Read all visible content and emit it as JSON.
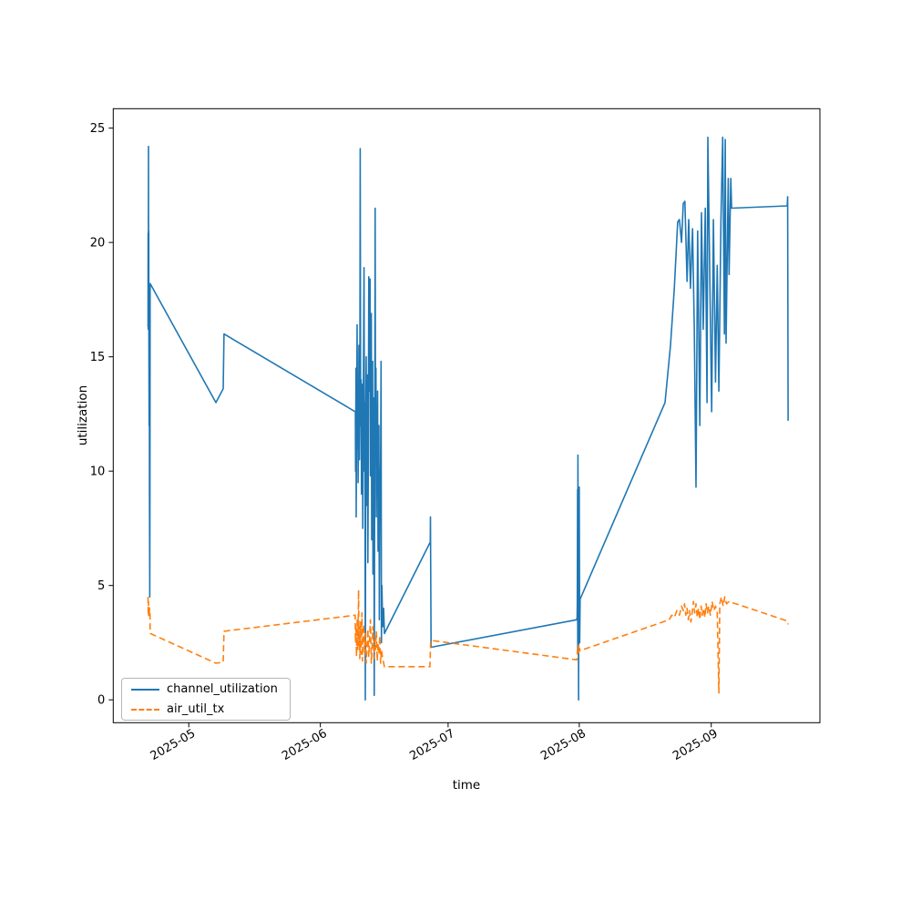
{
  "chart_data": {
    "type": "line",
    "title": "",
    "xlabel": "time",
    "ylabel": "utilization",
    "grid": false,
    "legend_position": "lower left",
    "x_axis": {
      "unit": "days since 2025-04-13",
      "min": 0,
      "max": 166.5,
      "ticks": [
        {
          "day": 17.8,
          "label": "2025-05"
        },
        {
          "day": 48.8,
          "label": "2025-06"
        },
        {
          "day": 78.9,
          "label": "2025-07"
        },
        {
          "day": 109.8,
          "label": "2025-08"
        },
        {
          "day": 140.9,
          "label": "2025-09"
        }
      ]
    },
    "y_axis": {
      "min": -1.0,
      "max": 25.85,
      "ticks": [
        0,
        5,
        10,
        15,
        20,
        25
      ]
    },
    "series": [
      {
        "name": "channel_utilization",
        "color": "#1f77b4",
        "style": "solid",
        "points": [
          [
            8.2,
            16.3
          ],
          [
            8.23,
            20.4
          ],
          [
            8.27,
            16.2
          ],
          [
            8.3,
            24.2
          ],
          [
            8.33,
            17.5
          ],
          [
            8.37,
            20.5
          ],
          [
            8.4,
            16.4
          ],
          [
            8.45,
            12.0
          ],
          [
            8.5,
            16.0
          ],
          [
            8.55,
            8.8
          ],
          [
            8.6,
            4.5
          ],
          [
            8.65,
            9.2
          ],
          [
            8.7,
            18.2
          ],
          [
            24.2,
            13.0
          ],
          [
            25.9,
            13.6
          ],
          [
            26.1,
            16.0
          ],
          [
            57.0,
            12.6
          ],
          [
            57.05,
            12.6
          ],
          [
            57.1,
            10.0
          ],
          [
            57.2,
            14.5
          ],
          [
            57.25,
            8.0
          ],
          [
            57.35,
            12.8
          ],
          [
            57.45,
            16.4
          ],
          [
            57.55,
            11.0
          ],
          [
            57.65,
            13.5
          ],
          [
            57.7,
            9.5
          ],
          [
            57.8,
            12.0
          ],
          [
            57.9,
            15.5
          ],
          [
            58.0,
            10.5
          ],
          [
            58.1,
            13.0
          ],
          [
            58.2,
            24.1
          ],
          [
            58.3,
            12.0
          ],
          [
            58.4,
            14.0
          ],
          [
            58.5,
            9.0
          ],
          [
            58.6,
            11.5
          ],
          [
            58.7,
            13.8
          ],
          [
            58.8,
            7.5
          ],
          [
            58.9,
            12.5
          ],
          [
            59.0,
            16.0
          ],
          [
            59.1,
            18.9
          ],
          [
            59.2,
            10.0
          ],
          [
            59.3,
            13.0
          ],
          [
            59.4,
            0.0
          ],
          [
            59.5,
            12.0
          ],
          [
            59.6,
            15.0
          ],
          [
            59.7,
            8.5
          ],
          [
            59.8,
            11.0
          ],
          [
            59.9,
            14.2
          ],
          [
            60.0,
            6.0
          ],
          [
            60.1,
            10.5
          ],
          [
            60.2,
            18.5
          ],
          [
            60.35,
            13.5
          ],
          [
            60.5,
            18.4
          ],
          [
            60.6,
            9.8
          ],
          [
            60.7,
            12.2
          ],
          [
            60.8,
            16.9
          ],
          [
            60.9,
            7.0
          ],
          [
            61.0,
            11.8
          ],
          [
            61.1,
            14.8
          ],
          [
            61.2,
            5.5
          ],
          [
            61.3,
            10.2
          ],
          [
            61.4,
            13.2
          ],
          [
            61.5,
            0.2
          ],
          [
            61.6,
            9.5
          ],
          [
            61.7,
            21.5
          ],
          [
            61.8,
            11.5
          ],
          [
            61.9,
            14.5
          ],
          [
            62.0,
            8.0
          ],
          [
            62.1,
            12.8
          ],
          [
            62.2,
            10.0
          ],
          [
            62.3,
            13.5
          ],
          [
            62.4,
            6.5
          ],
          [
            62.5,
            9.0
          ],
          [
            62.6,
            12.0
          ],
          [
            62.7,
            3.5
          ],
          [
            62.8,
            7.8
          ],
          [
            63.0,
            10.5
          ],
          [
            63.1,
            14.8
          ],
          [
            63.2,
            2.5
          ],
          [
            63.3,
            5.0
          ],
          [
            63.5,
            3.2
          ],
          [
            63.7,
            4.0
          ],
          [
            63.9,
            2.9
          ],
          [
            74.7,
            6.9
          ],
          [
            74.75,
            8.0
          ],
          [
            74.9,
            2.3
          ],
          [
            109.2,
            3.5
          ],
          [
            109.3,
            3.6
          ],
          [
            109.35,
            4.2
          ],
          [
            109.4,
            9.2
          ],
          [
            109.45,
            2.0
          ],
          [
            109.5,
            10.7
          ],
          [
            109.55,
            4.0
          ],
          [
            109.6,
            9.0
          ],
          [
            109.65,
            0.0
          ],
          [
            109.7,
            6.0
          ],
          [
            109.8,
            9.3
          ],
          [
            109.9,
            2.5
          ],
          [
            110.0,
            4.4
          ],
          [
            130.0,
            13.0
          ],
          [
            131.3,
            15.5
          ],
          [
            132.2,
            18.0
          ],
          [
            133.0,
            20.9
          ],
          [
            133.4,
            21.0
          ],
          [
            133.9,
            20.0
          ],
          [
            134.3,
            21.7
          ],
          [
            134.7,
            21.8
          ],
          [
            135.2,
            18.3
          ],
          [
            135.6,
            21.0
          ],
          [
            136.0,
            18.0
          ],
          [
            136.5,
            20.6
          ],
          [
            136.9,
            16.3
          ],
          [
            137.3,
            9.3
          ],
          [
            137.7,
            20.5
          ],
          [
            138.2,
            12.0
          ],
          [
            138.6,
            21.3
          ],
          [
            139.0,
            16.2
          ],
          [
            139.5,
            21.5
          ],
          [
            139.9,
            13.0
          ],
          [
            140.1,
            24.6
          ],
          [
            140.6,
            18.0
          ],
          [
            141.0,
            12.6
          ],
          [
            141.4,
            21.0
          ],
          [
            141.9,
            13.9
          ],
          [
            142.3,
            19.0
          ],
          [
            142.7,
            13.5
          ],
          [
            143.2,
            21.0
          ],
          [
            143.6,
            24.6
          ],
          [
            144.0,
            16.0
          ],
          [
            144.2,
            24.5
          ],
          [
            144.4,
            15.6
          ],
          [
            144.9,
            22.8
          ],
          [
            145.1,
            18.6
          ],
          [
            145.5,
            22.8
          ],
          [
            145.7,
            21.5
          ],
          [
            158.8,
            21.6
          ],
          [
            158.9,
            22.0
          ],
          [
            159.0,
            12.2
          ]
        ]
      },
      {
        "name": "air_util_tx",
        "color": "#ff7f0e",
        "style": "dashed",
        "points": [
          [
            8.2,
            4.5
          ],
          [
            8.25,
            3.7
          ],
          [
            8.3,
            4.3
          ],
          [
            8.35,
            3.6
          ],
          [
            8.4,
            4.1
          ],
          [
            8.5,
            3.7
          ],
          [
            8.55,
            4.0
          ],
          [
            8.65,
            3.9
          ],
          [
            8.7,
            3.0
          ],
          [
            8.75,
            2.9
          ],
          [
            24.2,
            1.6
          ],
          [
            25.9,
            1.65
          ],
          [
            26.1,
            3.0
          ],
          [
            57.0,
            3.7
          ],
          [
            57.1,
            2.5
          ],
          [
            57.2,
            3.3
          ],
          [
            57.3,
            1.9
          ],
          [
            57.4,
            2.8
          ],
          [
            57.5,
            3.6
          ],
          [
            57.6,
            2.2
          ],
          [
            57.7,
            3.0
          ],
          [
            57.8,
            4.8
          ],
          [
            57.9,
            2.4
          ],
          [
            58.0,
            3.2
          ],
          [
            58.1,
            1.8
          ],
          [
            58.2,
            2.6
          ],
          [
            58.3,
            3.4
          ],
          [
            58.4,
            2.0
          ],
          [
            58.5,
            2.9
          ],
          [
            58.6,
            3.8
          ],
          [
            58.7,
            1.7
          ],
          [
            58.8,
            2.5
          ],
          [
            59.0,
            3.3
          ],
          [
            59.2,
            2.1
          ],
          [
            59.4,
            2.9
          ],
          [
            59.6,
            1.6
          ],
          [
            59.8,
            2.3
          ],
          [
            60.0,
            3.1
          ],
          [
            60.2,
            1.9
          ],
          [
            60.4,
            2.7
          ],
          [
            60.6,
            3.5
          ],
          [
            60.8,
            1.6
          ],
          [
            61.0,
            2.4
          ],
          [
            61.2,
            3.2
          ],
          [
            61.4,
            1.8
          ],
          [
            61.6,
            2.6
          ],
          [
            61.8,
            2.2
          ],
          [
            62.0,
            3.0
          ],
          [
            62.2,
            1.7
          ],
          [
            62.4,
            2.5
          ],
          [
            62.6,
            2.0
          ],
          [
            62.8,
            2.8
          ],
          [
            63.0,
            1.6
          ],
          [
            63.2,
            2.2
          ],
          [
            63.5,
            1.8
          ],
          [
            63.9,
            1.45
          ],
          [
            74.6,
            1.45
          ],
          [
            74.8,
            2.6
          ],
          [
            109.2,
            1.75
          ],
          [
            109.3,
            1.8
          ],
          [
            109.4,
            2.3
          ],
          [
            109.5,
            2.0
          ],
          [
            109.6,
            2.4
          ],
          [
            109.7,
            2.1
          ],
          [
            109.85,
            2.25
          ],
          [
            110.0,
            2.15
          ],
          [
            131.0,
            3.5
          ],
          [
            131.6,
            3.7
          ],
          [
            132.2,
            3.6
          ],
          [
            132.8,
            3.9
          ],
          [
            133.4,
            3.7
          ],
          [
            133.9,
            4.1
          ],
          [
            134.3,
            3.9
          ],
          [
            134.6,
            4.2
          ],
          [
            134.9,
            3.7
          ],
          [
            135.2,
            4.0
          ],
          [
            135.5,
            3.5
          ],
          [
            135.8,
            3.9
          ],
          [
            136.1,
            3.4
          ],
          [
            136.4,
            3.8
          ],
          [
            136.7,
            4.3
          ],
          [
            137.0,
            3.8
          ],
          [
            137.3,
            4.2
          ],
          [
            137.6,
            3.6
          ],
          [
            137.9,
            4.0
          ],
          [
            138.2,
            3.5
          ],
          [
            138.5,
            4.1
          ],
          [
            138.8,
            3.7
          ],
          [
            139.1,
            4.0
          ],
          [
            139.4,
            3.6
          ],
          [
            139.7,
            4.2
          ],
          [
            140.0,
            3.8
          ],
          [
            140.3,
            4.1
          ],
          [
            140.7,
            3.7
          ],
          [
            141.1,
            4.3
          ],
          [
            141.5,
            3.9
          ],
          [
            141.9,
            4.1
          ],
          [
            142.3,
            3.8
          ],
          [
            142.7,
            0.3
          ],
          [
            142.9,
            4.2
          ],
          [
            143.3,
            4.5
          ],
          [
            143.7,
            4.1
          ],
          [
            144.1,
            4.5
          ],
          [
            144.5,
            4.2
          ],
          [
            145.1,
            4.3
          ],
          [
            158.8,
            3.45
          ],
          [
            159.0,
            3.3
          ]
        ]
      }
    ]
  }
}
